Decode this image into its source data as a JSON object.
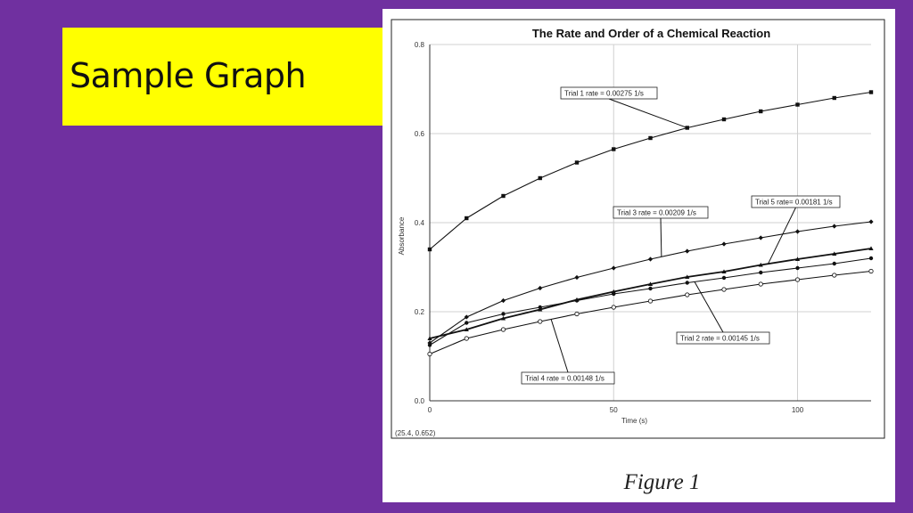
{
  "slide": {
    "title": "Sample Graph",
    "colors": {
      "background": "#7030a0",
      "title_box": "#ffff00"
    }
  },
  "figure": {
    "caption": "Figure 1"
  },
  "chart_data": {
    "type": "line",
    "title": "The Rate and Order of a Chemical Reaction",
    "xlabel": "Time (s)",
    "ylabel": "Absorbance",
    "xlim": [
      0,
      120
    ],
    "ylim": [
      0.0,
      0.8
    ],
    "x_ticks": [
      "0",
      "50",
      "100"
    ],
    "y_ticks": [
      "0.0",
      "0.2",
      "0.4",
      "0.6",
      "0.8"
    ],
    "grid": true,
    "coordinate_readout": "(25.4, 0.652)",
    "x": [
      0,
      10,
      20,
      30,
      40,
      50,
      60,
      70,
      80,
      90,
      100,
      110,
      120
    ],
    "series": [
      {
        "name": "Trial 1",
        "marker": "square",
        "values": [
          0.34,
          0.41,
          0.46,
          0.5,
          0.535,
          0.565,
          0.59,
          0.613,
          0.632,
          0.65,
          0.665,
          0.68,
          0.693
        ]
      },
      {
        "name": "Trial 2",
        "marker": "circle",
        "values": [
          0.125,
          0.175,
          0.195,
          0.21,
          0.225,
          0.24,
          0.252,
          0.265,
          0.276,
          0.288,
          0.298,
          0.308,
          0.32
        ]
      },
      {
        "name": "Trial 3",
        "marker": "diamond",
        "values": [
          0.13,
          0.188,
          0.225,
          0.253,
          0.277,
          0.298,
          0.318,
          0.336,
          0.352,
          0.366,
          0.38,
          0.392,
          0.402
        ]
      },
      {
        "name": "Trial 4",
        "marker": "open-circle",
        "values": [
          0.105,
          0.14,
          0.16,
          0.178,
          0.195,
          0.21,
          0.224,
          0.238,
          0.25,
          0.262,
          0.272,
          0.282,
          0.291
        ]
      },
      {
        "name": "Trial 5",
        "marker": "triangle",
        "values": [
          0.14,
          0.16,
          0.185,
          0.205,
          0.227,
          0.245,
          0.262,
          0.278,
          0.29,
          0.305,
          0.318,
          0.33,
          0.342
        ]
      }
    ],
    "annotations": [
      {
        "series": "Trial 1",
        "text": "Trial 1 rate = 0.00275 1/s"
      },
      {
        "series": "Trial 3",
        "text": "Trial 3 rate = 0.00209 1/s"
      },
      {
        "series": "Trial 5",
        "text": "Trial 5 rate= 0.00181 1/s"
      },
      {
        "series": "Trial 2",
        "text": "Trial 2 rate = 0.00145 1/s"
      },
      {
        "series": "Trial 4",
        "text": "Trial 4 rate = 0.00148 1/s"
      }
    ]
  }
}
